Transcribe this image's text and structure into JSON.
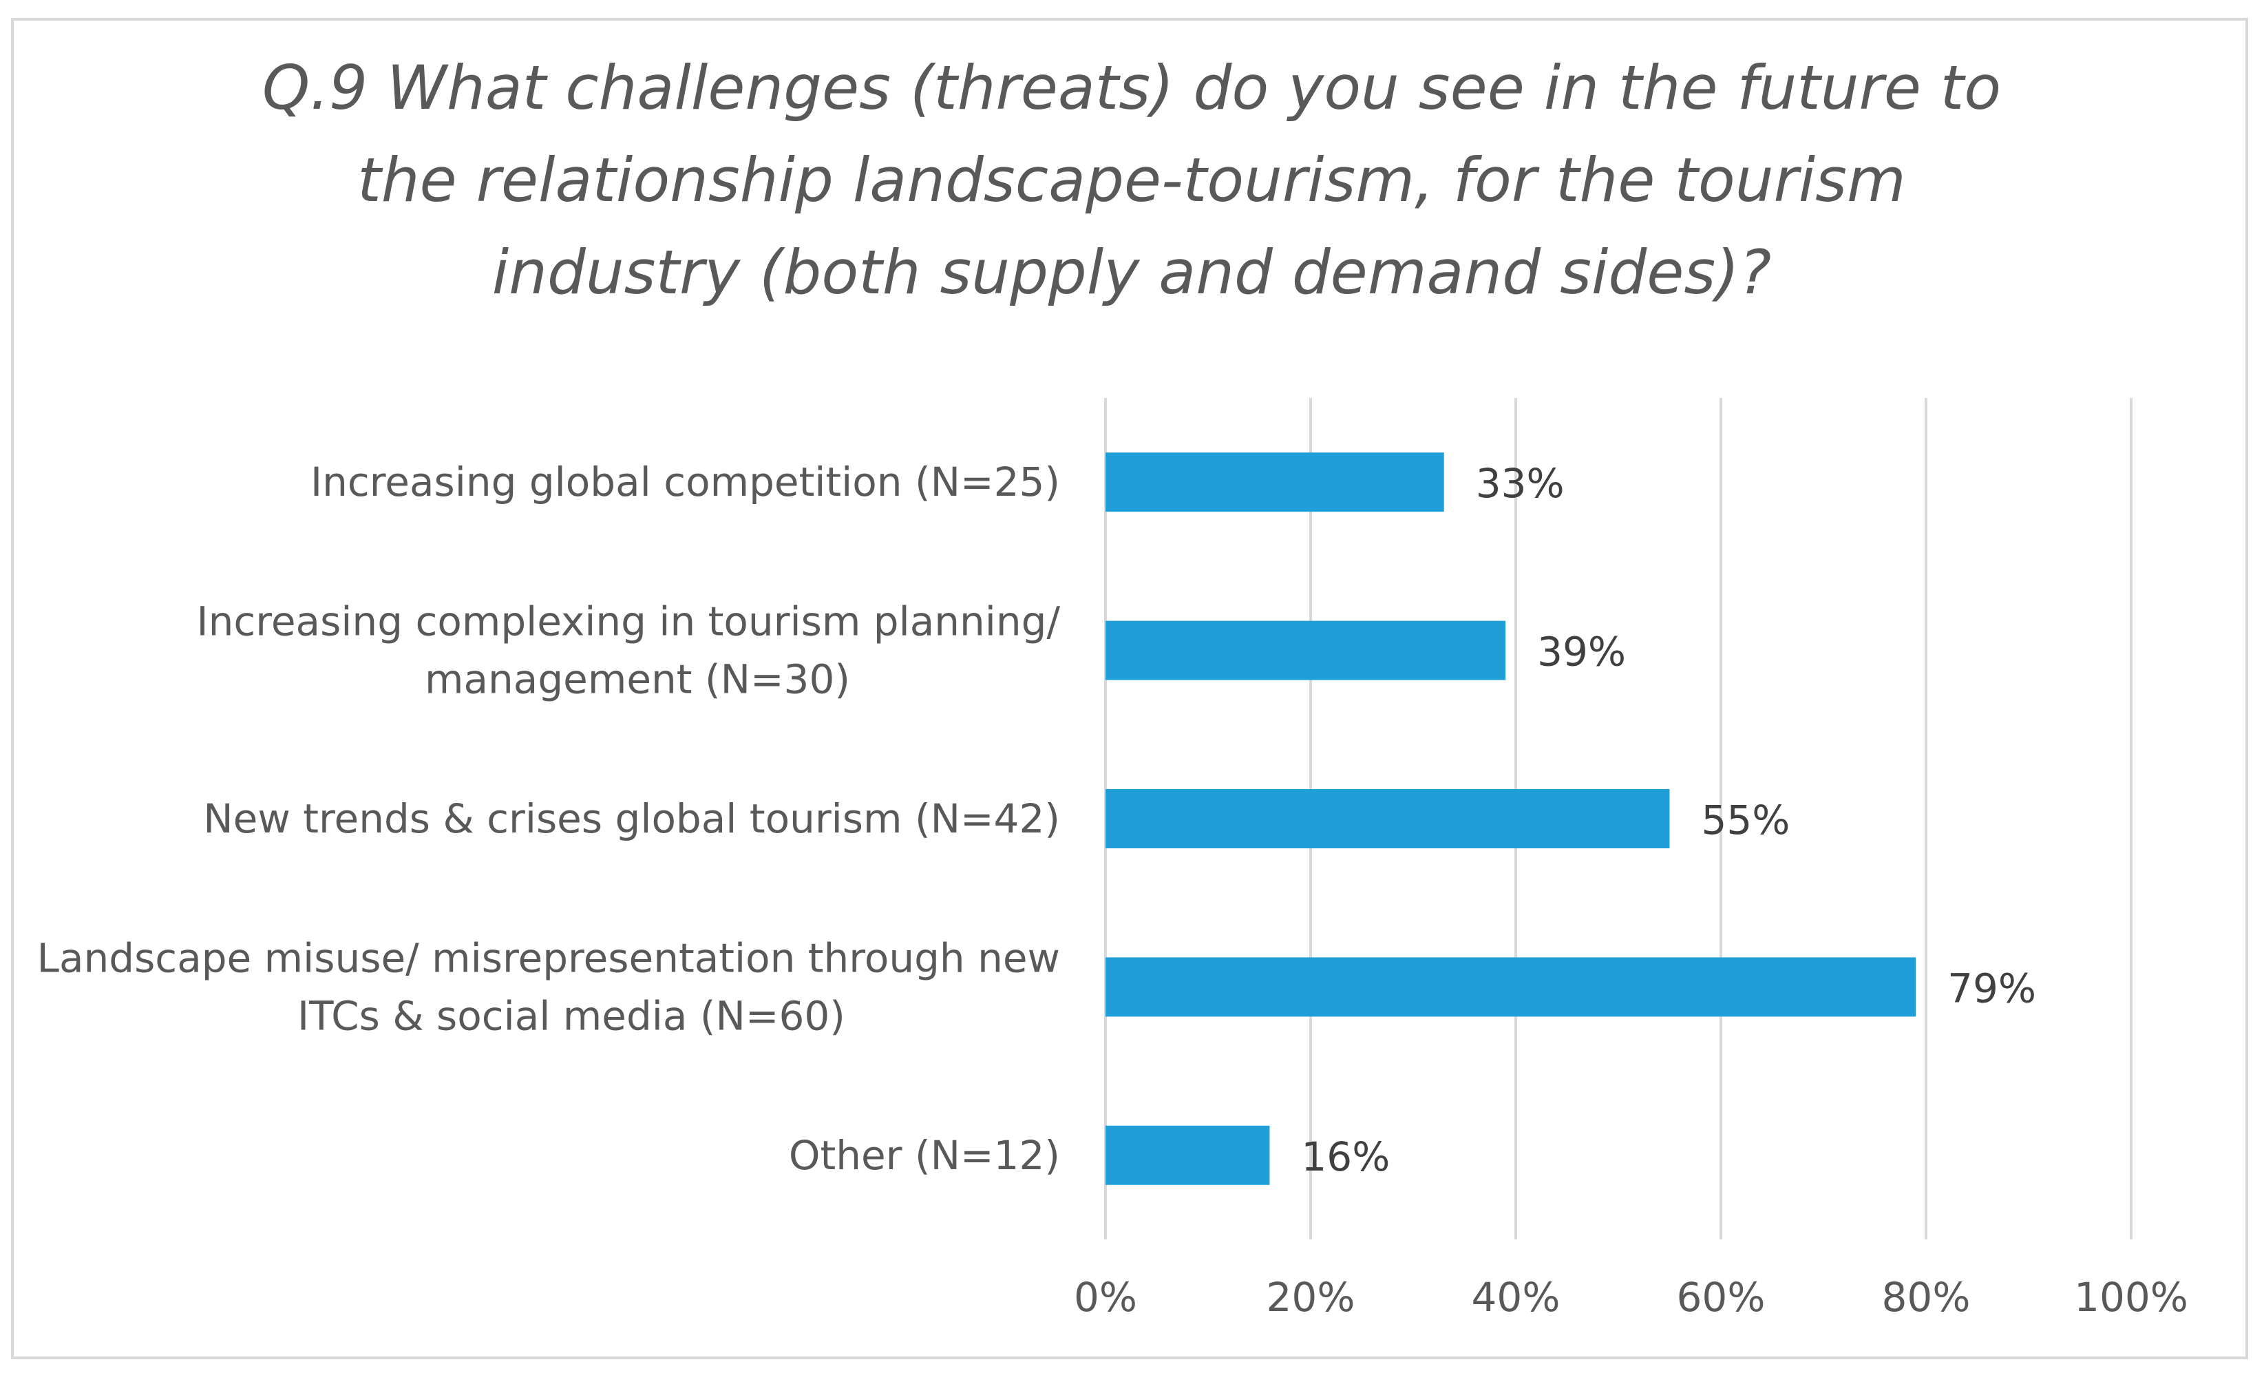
{
  "chart_data": {
    "type": "bar",
    "orientation": "horizontal",
    "title": "Q.9 What challenges (threats) do you see in the future to the relationship landscape-tourism, for the tourism industry (both supply and demand sides)?",
    "title_lines": [
      "Q.9 What challenges (threats) do you see in the future to",
      "the relationship landscape-tourism, for the tourism",
      "industry (both supply and demand sides)?"
    ],
    "categories": [
      [
        "Increasing global competition (N=25)"
      ],
      [
        "Increasing complexing in tourism planning/",
        "management  (N=30)"
      ],
      [
        "New trends & crises global tourism (N=42)"
      ],
      [
        "Landscape misuse/ misrepresentation through new",
        "ITCs & social media (N=60)"
      ],
      [
        "Other (N=12)"
      ]
    ],
    "values": [
      33,
      39,
      55,
      79,
      16
    ],
    "data_labels": [
      "33%",
      "39%",
      "55%",
      "79%",
      "16%"
    ],
    "xlim": [
      0,
      100
    ],
    "ticks": [
      0,
      20,
      40,
      60,
      80,
      100
    ],
    "tick_labels": [
      "0%",
      "20%",
      "40%",
      "60%",
      "80%",
      "100%"
    ],
    "grid": true,
    "legend": "none",
    "bar_color": "#1f9ed8",
    "xlabel": "",
    "ylabel": ""
  }
}
